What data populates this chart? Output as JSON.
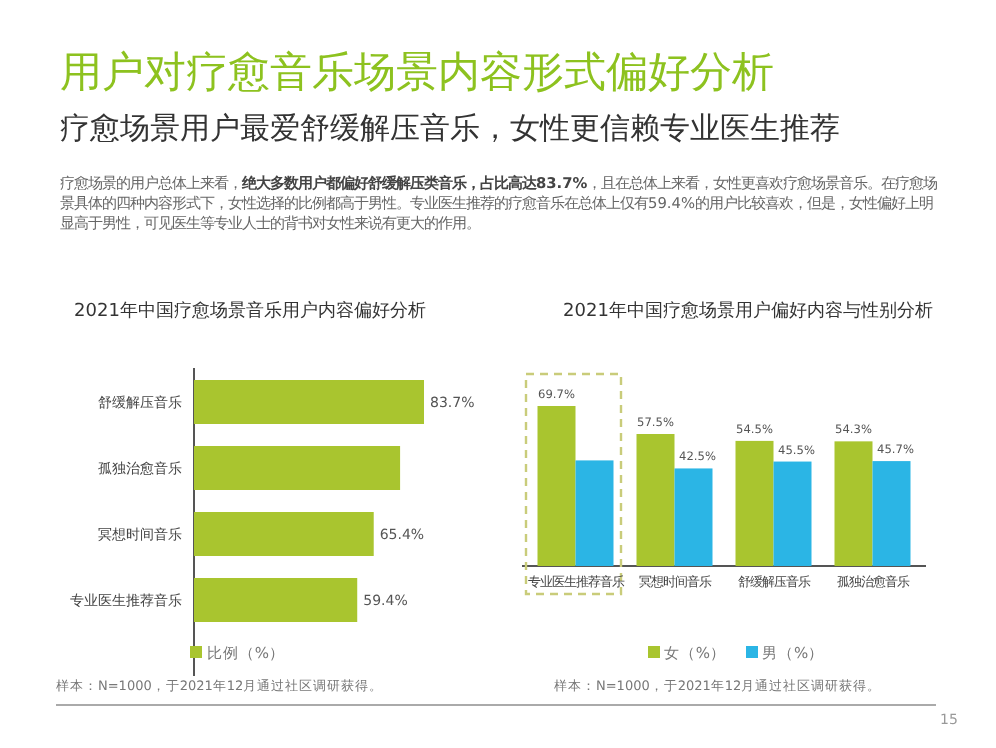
{
  "chart_data": [
    {
      "type": "other",
      "title": "用户对疗愈音乐场景内容形式偏好分析",
      "subtitle": "疗愈场景用户最爱舒缓解压音乐，女性更信赖专业医生推荐",
      "annotations": [
        "疗愈场景的用户总体上来看，**绝大多数用户都偏好舒缓解压类音乐，占比高达83.7%**，且在总体上来看，女性更喜欢疗愈场景音乐。在疗愈场景具体的四种内容形式下，女性选择的比例都高于男性。专业医生推荐的疗愈音乐在总体上仅有59.4%的用户比较喜欢，但是，女性偏好上明显高于男性，可见医生等专业人士的背书对女性来说有更大的作用。",
        "15"
      ]
    },
    {
      "type": "bar",
      "orientation": "horizontal",
      "title": "2021年中国疗愈场景音乐用户内容偏好分析",
      "categories": [
        "舒缓解压音乐",
        "孤独治愈音乐",
        "冥想时间音乐",
        "专业医生推荐音乐"
      ],
      "legend": "bottom",
      "annotations": [
        "样本：N=1000，于2021年12月通过社区调研获得。"
      ],
      "series": [
        {
          "name": "比例（%）",
          "color": "#a9c52f",
          "values": [
            83.7,
            75,
            65.4,
            59.4
          ],
          "value_labels": [
            "83.7%",
            null,
            "65.4%",
            "59.4%"
          ]
        }
      ]
    },
    {
      "type": "bar",
      "title": "2021年中国疗愈场景用户偏好内容与性别分析",
      "categories": [
        "专业医生推荐音乐",
        "冥想时间音乐",
        "舒缓解压音乐",
        "孤独治愈音乐"
      ],
      "legend": "bottom",
      "annotations": [
        "样本：N=1000，于2021年12月通过社区调研获得。"
      ],
      "series": [
        {
          "name": "女（%）",
          "color": "#a9c52f",
          "values": [
            69.7,
            57.5,
            54.5,
            54.3
          ],
          "value_labels": [
            "69.7%",
            "57.5%",
            "54.5%",
            "54.3%"
          ]
        },
        {
          "name": "男（%）",
          "color": "#2bb5e5",
          "values": [
            46,
            42.5,
            45.5,
            45.7
          ],
          "value_labels": [
            null,
            "42.5%",
            "45.5%",
            "45.7%"
          ]
        }
      ]
    }
  ]
}
